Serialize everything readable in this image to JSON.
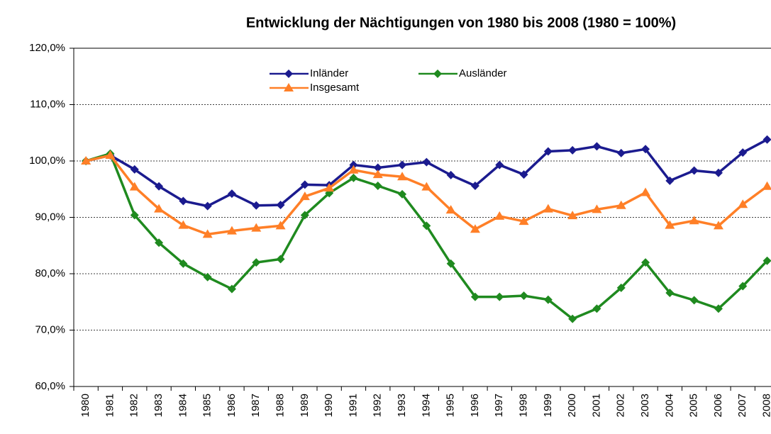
{
  "chart_data": {
    "type": "line",
    "title": "Entwicklung der Nächtigungen von 1980 bis 2008 (1980 = 100%)",
    "categories": [
      "1980",
      "1981",
      "1982",
      "1983",
      "1984",
      "1985",
      "1986",
      "1987",
      "1988",
      "1989",
      "1990",
      "1991",
      "1992",
      "1993",
      "1994",
      "1995",
      "1996",
      "1997",
      "1998",
      "1999",
      "2000",
      "2001",
      "2002",
      "2003",
      "2004",
      "2005",
      "2006",
      "2007",
      "2008"
    ],
    "series": [
      {
        "name": "Inländer",
        "color": "#1b1b8f",
        "marker": "diamond",
        "values": [
          100,
          101,
          98.5,
          95.5,
          92.9,
          92,
          94.2,
          92.1,
          92.2,
          95.8,
          95.7,
          99.3,
          98.8,
          99.3,
          99.8,
          97.5,
          95.6,
          99.3,
          97.6,
          101.7,
          101.9,
          102.6,
          101.4,
          102.1,
          96.5,
          98.3,
          97.9,
          101.5,
          103.8
        ]
      },
      {
        "name": "Ausländer",
        "color": "#1f8a1f",
        "marker": "diamond",
        "values": [
          100,
          101.3,
          90.4,
          85.5,
          81.8,
          79.4,
          77.3,
          82,
          82.6,
          90.4,
          94.3,
          97,
          95.6,
          94.1,
          88.5,
          81.8,
          75.9,
          75.9,
          76.1,
          75.4,
          72,
          73.8,
          77.5,
          82,
          76.6,
          75.3,
          73.8,
          77.8,
          82.3
        ]
      },
      {
        "name": "Insgesamt",
        "color": "#ff7f27",
        "marker": "triangle",
        "values": [
          100,
          101,
          95.4,
          91.5,
          88.6,
          87,
          87.6,
          88.1,
          88.5,
          93.7,
          95.2,
          98.4,
          97.6,
          97.2,
          95.4,
          91.3,
          87.9,
          90.2,
          89.3,
          91.5,
          90.3,
          91.4,
          92.1,
          94.4,
          88.6,
          89.4,
          88.5,
          92.3,
          95.5
        ]
      }
    ],
    "ylim": [
      60,
      120
    ],
    "yticks": [
      {
        "value": 60,
        "label": "60,0%"
      },
      {
        "value": 70,
        "label": "70,0%"
      },
      {
        "value": 80,
        "label": "80,0%"
      },
      {
        "value": 90,
        "label": "90,0%"
      },
      {
        "value": 100,
        "label": "100,0%"
      },
      {
        "value": 110,
        "label": "110,0%"
      },
      {
        "value": 120,
        "label": "120,0%"
      }
    ],
    "grid": true
  }
}
